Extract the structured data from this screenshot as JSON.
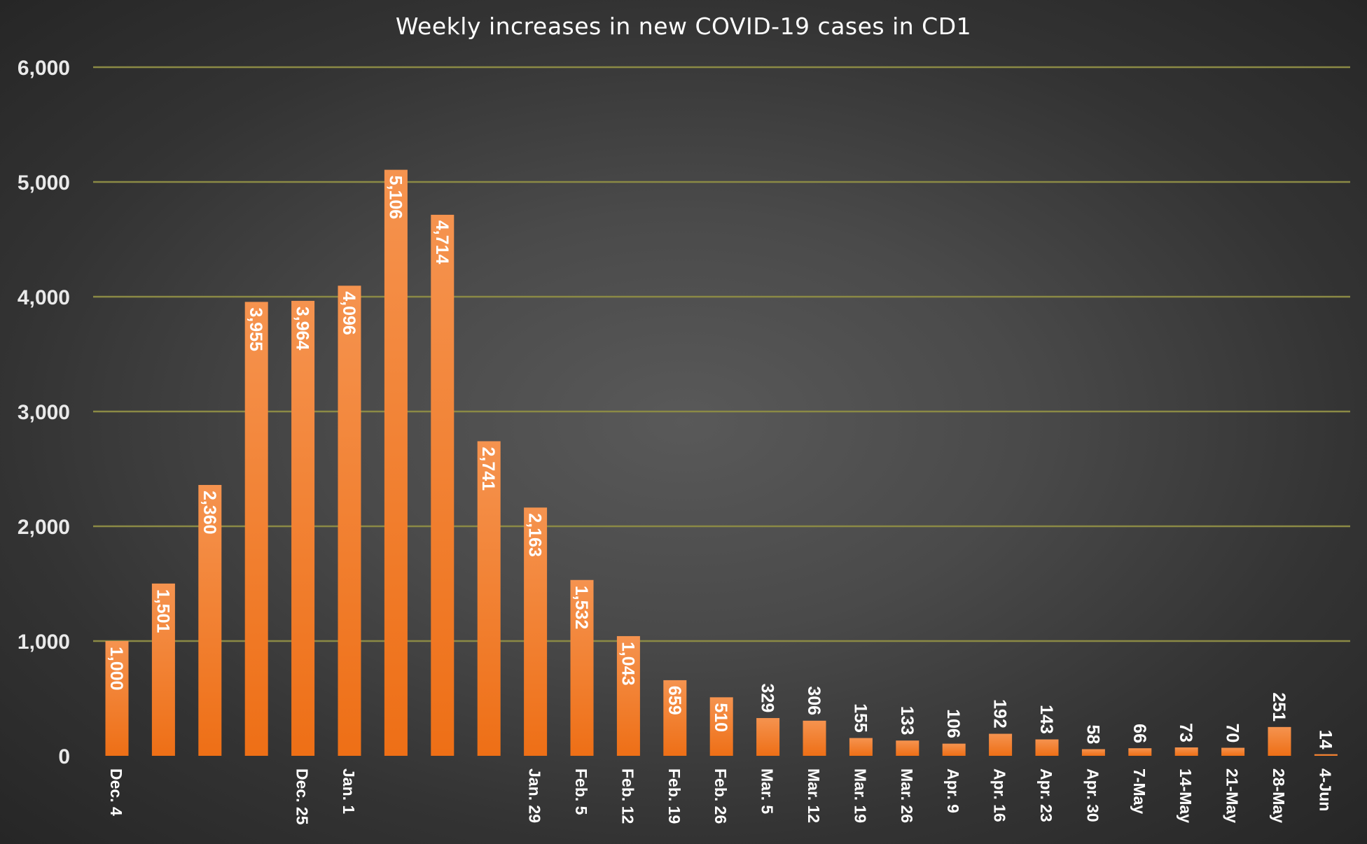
{
  "chart_data": {
    "type": "bar",
    "title": "Weekly increases in new COVID-19 cases in CD1",
    "xlabel": "",
    "ylabel": "",
    "ylim": [
      0,
      6000
    ],
    "yticks": [
      "0",
      "1,000",
      "2,000",
      "3,000",
      "4,000",
      "5,000",
      "6,000"
    ],
    "ytick_values": [
      0,
      1000,
      2000,
      3000,
      4000,
      5000,
      6000
    ],
    "grid": true,
    "legend": "none",
    "colors": {
      "bar_top": "#f5934f",
      "bar_bottom": "#ee6f16",
      "gridline": "#8b8a45",
      "text": "#ffffff"
    },
    "categories": [
      "Dec. 4",
      "",
      "",
      "",
      "Dec. 25",
      "Jan. 1",
      "",
      "",
      "",
      "Jan. 29",
      "Feb. 5",
      "Feb. 12",
      "Feb. 19",
      "Feb. 26",
      "Mar. 5",
      "Mar. 12",
      "Mar. 19",
      "Mar. 26",
      "Apr. 9",
      "Apr. 16",
      "Apr. 23",
      "Apr. 30",
      "7-May",
      "14-May",
      "21-May",
      "28-May",
      "4-Jun"
    ],
    "values": [
      1000,
      1501,
      2360,
      3955,
      3964,
      4096,
      5106,
      4714,
      2741,
      2163,
      1532,
      1043,
      659,
      510,
      329,
      306,
      155,
      133,
      106,
      192,
      143,
      58,
      66,
      73,
      70,
      251,
      14
    ],
    "data_labels": [
      "1,000",
      "1,501",
      "2,360",
      "3,955",
      "3,964",
      "4,096",
      "5,106",
      "4,714",
      "2,741",
      "2,163",
      "1,532",
      "1,043",
      "659",
      "510",
      "329",
      "306",
      "155",
      "133",
      "106",
      "192",
      "143",
      "58",
      "66",
      "73",
      "70",
      "251",
      "14"
    ]
  }
}
